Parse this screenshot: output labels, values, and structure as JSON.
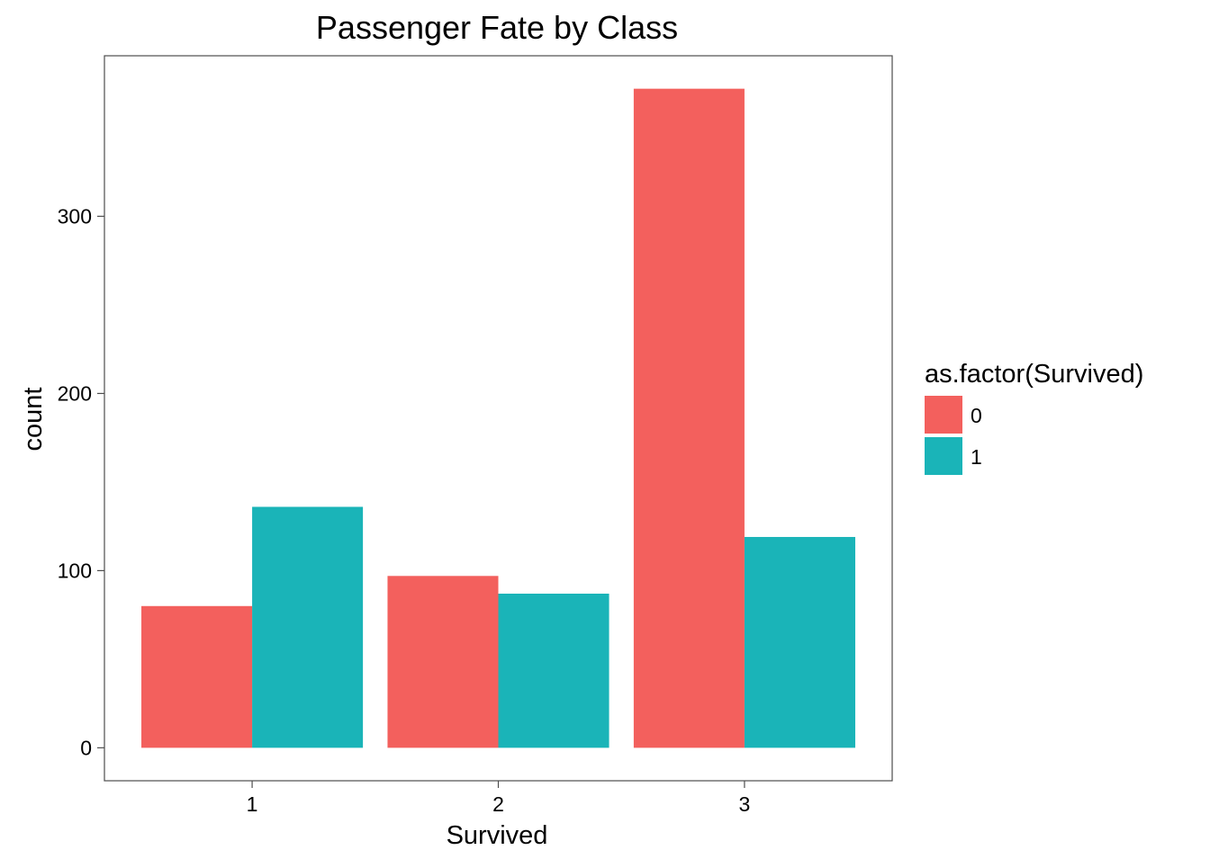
{
  "chart_data": {
    "type": "bar",
    "title": "Passenger Fate by Class",
    "xlabel": "Survived",
    "ylabel": "count",
    "categories": [
      "1",
      "2",
      "3"
    ],
    "series": [
      {
        "name": "0",
        "values": [
          80,
          97,
          372
        ],
        "color": "#F3605D"
      },
      {
        "name": "1",
        "values": [
          136,
          87,
          119
        ],
        "color": "#1AB4B8"
      }
    ],
    "yticks": [
      0,
      100,
      200,
      300
    ],
    "ylim": [
      -18.6,
      390.6
    ],
    "legend": {
      "title": "as.factor(Survived)",
      "position": "right"
    },
    "grid": false
  }
}
